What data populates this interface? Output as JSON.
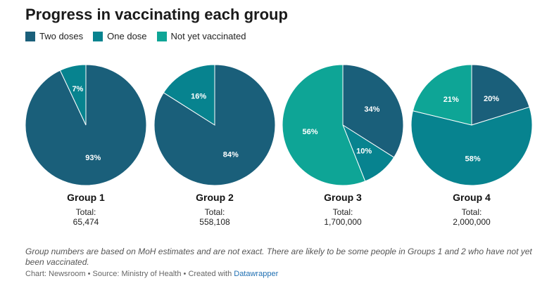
{
  "title": "Progress in vaccinating each group",
  "legend": [
    {
      "label": "Two doses",
      "color": "#1a5f7a"
    },
    {
      "label": "One dose",
      "color": "#07838f"
    },
    {
      "label": "Not yet vaccinated",
      "color": "#0ea596"
    }
  ],
  "chart_data": [
    {
      "type": "pie",
      "title": "Group 1",
      "total_label": "Total:",
      "total": "65,474",
      "slices": [
        {
          "name": "Two doses",
          "value": 93,
          "label": "93%",
          "color": "#1a5f7a"
        },
        {
          "name": "One dose",
          "value": 7,
          "label": "7%",
          "color": "#07838f"
        }
      ]
    },
    {
      "type": "pie",
      "title": "Group 2",
      "total_label": "Total:",
      "total": "558,108",
      "slices": [
        {
          "name": "Two doses",
          "value": 84,
          "label": "84%",
          "color": "#1a5f7a"
        },
        {
          "name": "One dose",
          "value": 16,
          "label": "16%",
          "color": "#07838f"
        }
      ]
    },
    {
      "type": "pie",
      "title": "Group 3",
      "total_label": "Total:",
      "total": "1,700,000",
      "slices": [
        {
          "name": "Two doses",
          "value": 34,
          "label": "34%",
          "color": "#1a5f7a"
        },
        {
          "name": "One dose",
          "value": 10,
          "label": "10%",
          "color": "#07838f"
        },
        {
          "name": "Not yet vaccinated",
          "value": 56,
          "label": "56%",
          "color": "#0ea596"
        }
      ]
    },
    {
      "type": "pie",
      "title": "Group 4",
      "total_label": "Total:",
      "total": "2,000,000",
      "slices": [
        {
          "name": "Two doses",
          "value": 20,
          "label": "20%",
          "color": "#1a5f7a"
        },
        {
          "name": "One dose",
          "value": 58,
          "label": "58%",
          "color": "#07838f"
        },
        {
          "name": "Not yet vaccinated",
          "value": 21,
          "label": "21%",
          "color": "#0ea596"
        }
      ]
    }
  ],
  "note": "Group numbers are based on MoH estimates and are not exact. There are likely to be some people in Groups 1 and 2 who have not yet been vaccinated.",
  "credits": {
    "prefix": "Chart: Newsroom • Source: Ministry of Health • Created with ",
    "link": "Datawrapper"
  }
}
